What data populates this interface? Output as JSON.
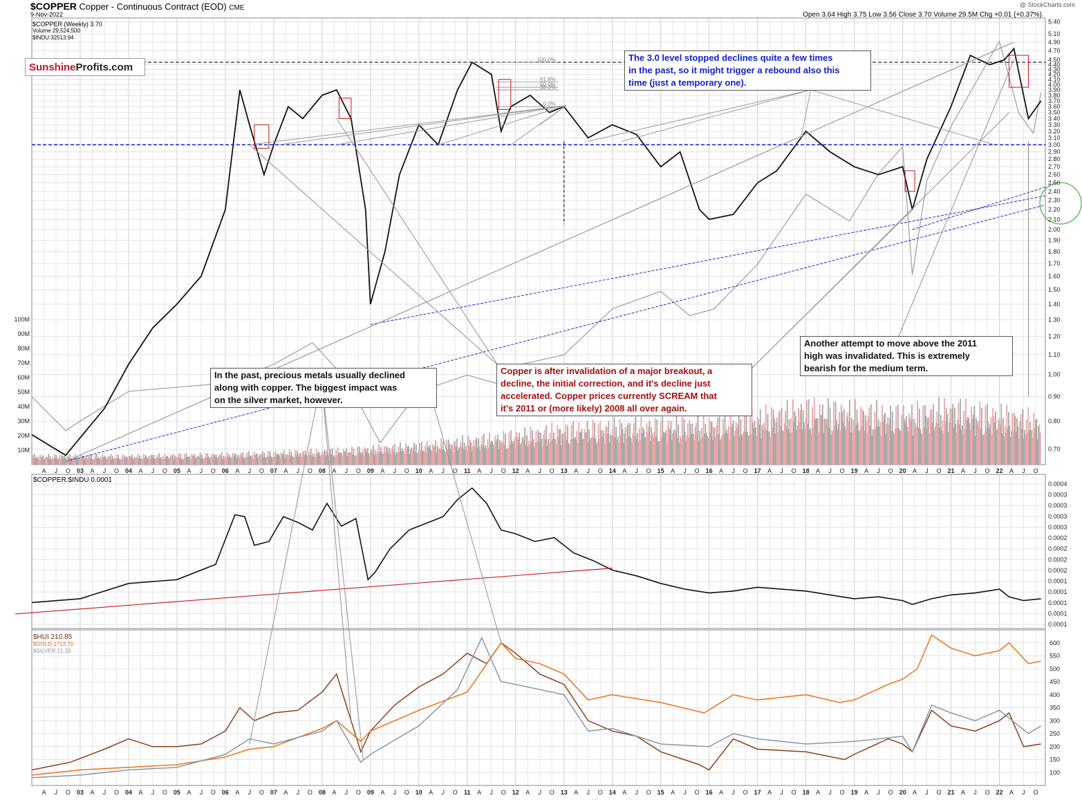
{
  "header": {
    "symbol": "$COPPER",
    "description": "Copper - Continuous Contract (EOD)",
    "exchange": "CME",
    "date": "9-Nov-2022",
    "credit": "@ StockCharts.com",
    "quote": "Open 3.64  High 3.75  Low 3.56  Close 3.70  Volume 29.5M  Chg +0.01 (+0.37%)"
  },
  "logo": {
    "part1": "Sunshine",
    "part2": "Profits.com"
  },
  "legends": {
    "price": [
      "$COPPER (Weekly) 3.70",
      "Volume 29,524,500",
      "$INDU 32513.94"
    ],
    "ratio": "$COPPER:$INDU 0.0001",
    "metals": [
      "$HUI 210.85",
      "$GOLD 1713.70",
      "$SILVER 21.33"
    ]
  },
  "annotations": {
    "blue_note": [
      "The 3.0 level stopped declines quite a few times",
      "in the past, so it might trigger a rebound also this",
      "time (just a temporary one)."
    ],
    "pm_note": [
      "In the past, precious metals usually declined",
      "along with copper. The biggest impact was",
      "on the silver market, however."
    ],
    "copper_note": [
      "Copper is after invalidation of a major breakout, a",
      "decline, the initial correction, and it's decline just",
      "accelerated. Copper prices currently SCREAM that",
      "it's 2011 or (more likely) 2008 all over again."
    ],
    "black_note": [
      "Another attempt to move above the 2011",
      "high was invalidated. This is extremely",
      "bearish for the medium term."
    ]
  },
  "fib_labels": [
    "100.0%",
    "61.8%",
    "50.0%",
    "38.2%",
    "0.0%"
  ],
  "colors": {
    "copper": "#111111",
    "indu": "#a9a9a9",
    "hui": "#8b3e1a",
    "gold": "#e8731c",
    "silver": "#8896a5",
    "blue_level": "#1a2ecf",
    "red_trend": "#c01818",
    "up_bar": "#e8a7a7",
    "down_bar": "#a8a8a8",
    "green_circle": "#2a9d2a"
  },
  "chart_data": [
    {
      "type": "line",
      "name": "price",
      "series": [
        {
          "name": "$COPPER (Weekly)",
          "x": [
            2002.0,
            2002.7,
            2003.5,
            2004.0,
            2004.5,
            2005.0,
            2005.5,
            2006.0,
            2006.3,
            2006.5,
            2006.8,
            2007.0,
            2007.3,
            2007.6,
            2008.0,
            2008.3,
            2008.6,
            2008.9,
            2009.0,
            2009.3,
            2009.6,
            2010.0,
            2010.4,
            2010.8,
            2011.1,
            2011.5,
            2011.7,
            2011.9,
            2012.3,
            2012.7,
            2013.0,
            2013.5,
            2014.0,
            2014.5,
            2015.0,
            2015.4,
            2015.8,
            2016.0,
            2016.5,
            2017.0,
            2017.4,
            2018.0,
            2018.5,
            2019.0,
            2019.5,
            2020.0,
            2020.2,
            2020.5,
            2021.0,
            2021.4,
            2021.8,
            2022.1,
            2022.3,
            2022.6,
            2022.86
          ],
          "y": [
            0.75,
            0.68,
            0.85,
            1.05,
            1.25,
            1.4,
            1.6,
            2.2,
            3.9,
            3.3,
            2.6,
            3.0,
            3.6,
            3.4,
            3.8,
            3.9,
            3.4,
            2.2,
            1.4,
            1.8,
            2.6,
            3.3,
            3.0,
            3.9,
            4.45,
            4.2,
            3.2,
            3.6,
            3.8,
            3.5,
            3.6,
            3.1,
            3.3,
            3.15,
            2.7,
            2.9,
            2.2,
            2.1,
            2.15,
            2.5,
            2.65,
            3.2,
            2.9,
            2.7,
            2.6,
            2.7,
            2.2,
            2.8,
            3.6,
            4.6,
            4.4,
            4.5,
            4.75,
            3.4,
            3.7
          ]
        },
        {
          "name": "$INDU",
          "x": [
            2002.0,
            2002.7,
            2003.0,
            2004.0,
            2005.0,
            2006.0,
            2007.0,
            2007.8,
            2008.5,
            2009.2,
            2010.0,
            2011.0,
            2011.6,
            2012.0,
            2013.0,
            2014.0,
            2015.0,
            2015.6,
            2016.1,
            2017.0,
            2018.0,
            2018.9,
            2019.5,
            2020.0,
            2020.2,
            2020.5,
            2021.0,
            2022.0,
            2022.4,
            2022.7,
            2022.86
          ],
          "y": [
            10000,
            7500,
            8200,
            10400,
            10700,
            11000,
            12400,
            14000,
            11300,
            6600,
            10400,
            11600,
            11000,
            12300,
            13100,
            16500,
            17800,
            16000,
            16500,
            19800,
            25000,
            23000,
            26500,
            28500,
            19000,
            26000,
            30000,
            36300,
            31000,
            29500,
            32513.94
          ]
        }
      ],
      "ylim": [
        0.65,
        5.5
      ],
      "y_ticks": [
        5.4,
        5.1,
        4.9,
        4.7,
        4.5,
        4.4,
        4.3,
        4.2,
        4.1,
        4.0,
        3.9,
        3.8,
        3.7,
        3.6,
        3.5,
        3.4,
        3.3,
        3.2,
        3.1,
        3.0,
        2.9,
        2.8,
        2.7,
        2.6,
        2.5,
        2.4,
        2.3,
        2.2,
        2.1,
        2.0,
        1.9,
        1.8,
        1.7,
        1.6,
        1.5,
        1.4,
        1.3,
        1.2,
        1.1,
        1.0,
        0.9,
        0.8,
        0.7
      ],
      "reference_level": 3.0,
      "log_scale": true
    },
    {
      "type": "bar",
      "name": "Volume",
      "y_ticks": [
        "100M",
        "90M",
        "80M",
        "70M",
        "60M",
        "50M",
        "40M",
        "30M",
        "20M",
        "10M"
      ],
      "ylim": [
        0,
        100
      ],
      "levels": [
        {
          "x": 2002.0,
          "y": 6
        },
        {
          "x": 2004.0,
          "y": 6
        },
        {
          "x": 2006.0,
          "y": 7
        },
        {
          "x": 2008.0,
          "y": 9
        },
        {
          "x": 2010.0,
          "y": 13
        },
        {
          "x": 2011.5,
          "y": 18
        },
        {
          "x": 2013.0,
          "y": 24
        },
        {
          "x": 2014.0,
          "y": 26
        },
        {
          "x": 2016.0,
          "y": 28
        },
        {
          "x": 2017.0,
          "y": 32
        },
        {
          "x": 2018.0,
          "y": 38
        },
        {
          "x": 2019.0,
          "y": 36
        },
        {
          "x": 2020.0,
          "y": 34
        },
        {
          "x": 2021.0,
          "y": 38
        },
        {
          "x": 2022.0,
          "y": 34
        },
        {
          "x": 2022.86,
          "y": 30
        }
      ]
    },
    {
      "type": "line",
      "name": "ratio",
      "series": [
        {
          "name": "$COPPER:$INDU",
          "x": [
            2002.0,
            2003.0,
            2004.0,
            2005.0,
            2005.8,
            2006.2,
            2006.4,
            2006.6,
            2006.9,
            2007.2,
            2007.5,
            2007.8,
            2008.1,
            2008.4,
            2008.7,
            2008.95,
            2009.1,
            2009.4,
            2009.8,
            2010.2,
            2010.5,
            2010.8,
            2011.1,
            2011.4,
            2011.7,
            2012.0,
            2012.4,
            2012.8,
            2013.2,
            2013.6,
            2014.0,
            2014.5,
            2015.0,
            2015.5,
            2016.0,
            2016.5,
            2017.0,
            2017.5,
            2018.0,
            2018.5,
            2019.0,
            2019.5,
            2020.0,
            2020.2,
            2020.6,
            2021.0,
            2021.5,
            2022.0,
            2022.2,
            2022.5,
            2022.86
          ],
          "y": [
            0.1,
            0.12,
            0.2,
            0.22,
            0.3,
            0.56,
            0.55,
            0.4,
            0.42,
            0.55,
            0.52,
            0.48,
            0.62,
            0.5,
            0.54,
            0.22,
            0.26,
            0.38,
            0.48,
            0.52,
            0.55,
            0.64,
            0.7,
            0.62,
            0.48,
            0.46,
            0.42,
            0.44,
            0.36,
            0.32,
            0.27,
            0.24,
            0.2,
            0.17,
            0.15,
            0.16,
            0.18,
            0.17,
            0.16,
            0.14,
            0.12,
            0.13,
            0.11,
            0.09,
            0.12,
            0.14,
            0.15,
            0.17,
            0.13,
            0.11,
            0.12
          ]
        }
      ],
      "ylim": [
        0,
        0.75
      ],
      "y_ticks": [
        "0.0004",
        "0.0003",
        "0.0003",
        "0.0003",
        "0.0003",
        "0.0002",
        "0.0002",
        "0.0002",
        "0.0002",
        "0.0001",
        "0.0001",
        "0.0001",
        "0.0001",
        "0.0001"
      ]
    },
    {
      "type": "line",
      "name": "metals",
      "series": [
        {
          "name": "$HUI",
          "x": [
            2002.0,
            2002.8,
            2003.5,
            2004.0,
            2004.5,
            2005.0,
            2005.5,
            2006.0,
            2006.3,
            2006.6,
            2007.0,
            2007.5,
            2008.0,
            2008.3,
            2008.8,
            2009.0,
            2009.5,
            2010.0,
            2010.5,
            2011.0,
            2011.4,
            2011.7,
            2012.0,
            2012.5,
            2013.0,
            2013.5,
            2014.0,
            2014.5,
            2015.0,
            2015.8,
            2016.0,
            2016.5,
            2017.0,
            2018.0,
            2018.8,
            2019.0,
            2019.7,
            2020.0,
            2020.2,
            2020.6,
            2021.0,
            2021.5,
            2022.0,
            2022.2,
            2022.5,
            2022.86
          ],
          "y": [
            110,
            140,
            190,
            230,
            200,
            200,
            210,
            260,
            350,
            300,
            330,
            340,
            410,
            480,
            180,
            260,
            360,
            430,
            480,
            560,
            520,
            600,
            560,
            480,
            440,
            300,
            260,
            240,
            180,
            130,
            110,
            230,
            190,
            180,
            150,
            170,
            230,
            210,
            180,
            340,
            280,
            260,
            300,
            330,
            200,
            210
          ]
        },
        {
          "name": "$GOLD",
          "x": [
            2002.0,
            2003.0,
            2004.0,
            2005.0,
            2006.0,
            2006.5,
            2007.0,
            2008.0,
            2008.3,
            2008.8,
            2009.0,
            2010.0,
            2011.0,
            2011.7,
            2012.0,
            2012.5,
            2013.0,
            2013.5,
            2014.0,
            2015.0,
            2015.9,
            2016.5,
            2017.0,
            2018.0,
            2018.7,
            2019.0,
            2019.7,
            2020.0,
            2020.3,
            2020.6,
            2021.0,
            2021.5,
            2022.0,
            2022.2,
            2022.6,
            2022.86
          ],
          "y": [
            90,
            110,
            120,
            130,
            160,
            190,
            200,
            270,
            300,
            220,
            260,
            340,
            410,
            600,
            540,
            520,
            480,
            380,
            400,
            370,
            330,
            400,
            380,
            400,
            370,
            380,
            440,
            460,
            500,
            630,
            580,
            550,
            570,
            600,
            520,
            530
          ]
        },
        {
          "name": "$SILVER",
          "x": [
            2002.0,
            2003.0,
            2004.0,
            2005.0,
            2006.0,
            2006.5,
            2007.0,
            2008.0,
            2008.3,
            2008.8,
            2009.0,
            2010.0,
            2010.8,
            2011.3,
            2011.7,
            2012.0,
            2012.5,
            2013.0,
            2013.5,
            2014.0,
            2015.0,
            2016.0,
            2016.5,
            2017.0,
            2018.0,
            2019.0,
            2020.0,
            2020.2,
            2020.6,
            2021.0,
            2021.5,
            2022.0,
            2022.2,
            2022.6,
            2022.86
          ],
          "y": [
            80,
            90,
            110,
            120,
            170,
            230,
            210,
            260,
            300,
            140,
            170,
            280,
            420,
            620,
            450,
            440,
            420,
            400,
            260,
            270,
            210,
            200,
            250,
            230,
            210,
            220,
            240,
            180,
            360,
            330,
            300,
            340,
            310,
            250,
            280
          ]
        }
      ],
      "ylim": [
        50,
        650
      ],
      "y_ticks": [
        600,
        550,
        500,
        450,
        400,
        350,
        300,
        250,
        200,
        150,
        100
      ]
    }
  ],
  "x_axis": {
    "year_labels": [
      "03",
      "04",
      "05",
      "06",
      "07",
      "08",
      "09",
      "10",
      "11",
      "12",
      "13",
      "14",
      "15",
      "16",
      "17",
      "18",
      "19",
      "20",
      "21",
      "22"
    ],
    "month_labels": [
      "A",
      "J",
      "O"
    ]
  }
}
